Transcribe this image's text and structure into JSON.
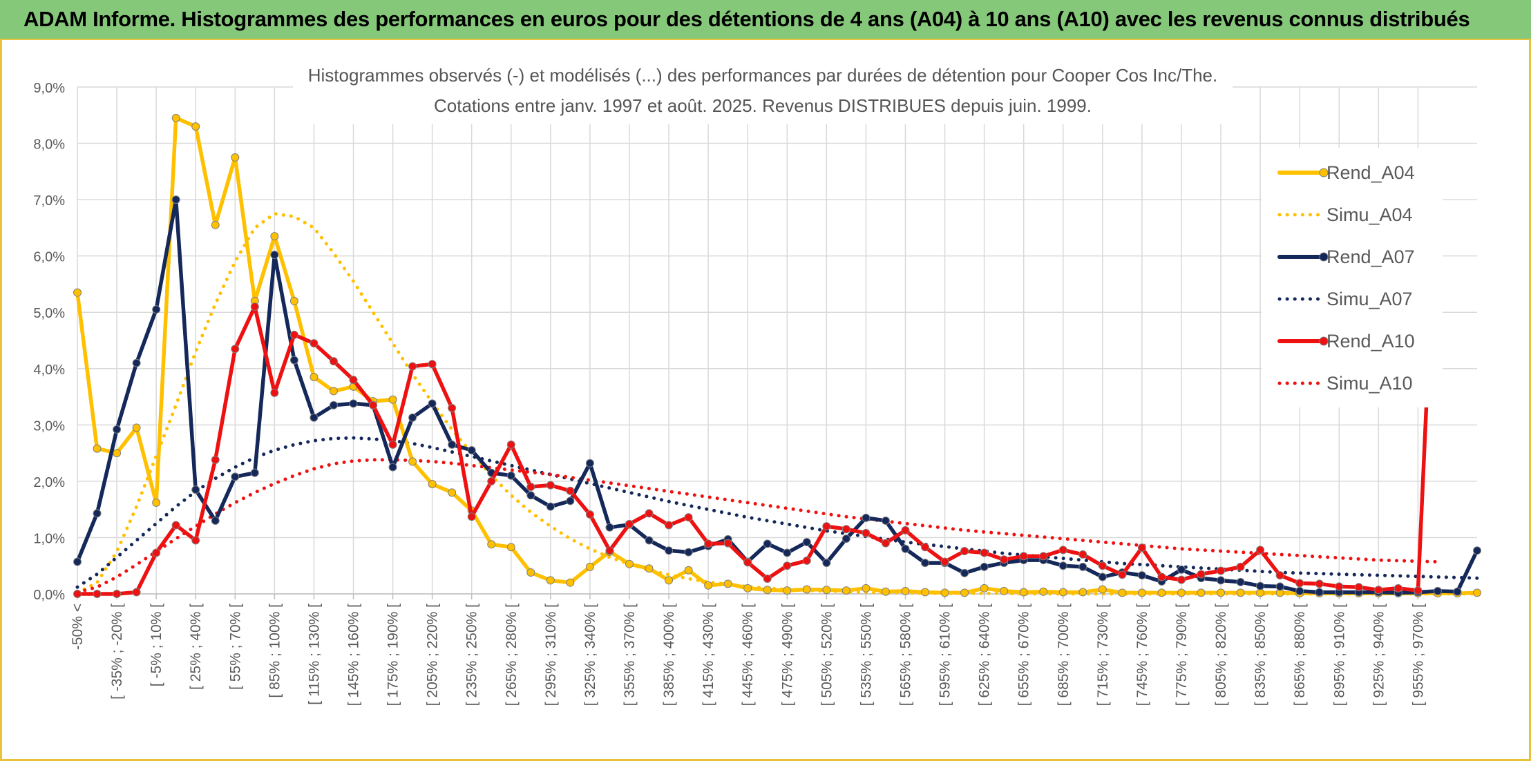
{
  "banner": {
    "title": "ADAM Informe. Histogrammes des performances en euros pour des détentions de 4 ans (A04) à 10 ans (A10) avec les revenus connus distribués"
  },
  "chart_data": {
    "type": "line",
    "title": "Histogrammes observés (-) et modélisés (...) des performances par durées de détention pour Cooper Cos Inc/The.",
    "subtitle": "Cotations entre janv. 1997 et août. 2025. Revenus DISTRIBUES depuis juin. 1999.",
    "ylim": [
      0,
      9
    ],
    "y_ticks": [
      "0,0%",
      "1,0%",
      "2,0%",
      "3,0%",
      "4,0%",
      "5,0%",
      "6,0%",
      "7,0%",
      "8,0%",
      "9,0%"
    ],
    "grid": true,
    "legend_position": "right",
    "x_tick_labels": [
      "-50% <",
      "[ -35% ; -20% [",
      "[ -5% ; 10% [",
      "[ 25% ; 40% [",
      "[ 55% ; 70% [",
      "[ 85% ; 100% [",
      "[ 115% ; 130% [",
      "[ 145% ; 160% [",
      "[ 175% ; 190% [",
      "[ 205% ; 220% [",
      "[ 235% ; 250% [",
      "[ 265% ; 280% [",
      "[ 295% ; 310% [",
      "[ 325% ; 340% [",
      "[ 355% ; 370% [",
      "[ 385% ; 400% [",
      "[ 415% ; 430% [",
      "[ 445% ; 460% [",
      "[ 475% ; 490% [",
      "[ 505% ; 520% [",
      "[ 535% ; 550% [",
      "[ 565% ; 580% [",
      "[ 595% ; 610% [",
      "[ 625% ; 640% [",
      "[ 655% ; 670% [",
      "[ 685% ; 700% [",
      "[ 715% ; 730% [",
      "[ 745% ; 760% [",
      "[ 775% ; 790% [",
      "[ 805% ; 820% [",
      "[ 835% ; 850% [",
      "[ 865% ; 880% [",
      "[ 895% ; 910% [",
      "[ 925% ; 940% [",
      "[ 955% ; 970% ["
    ],
    "series": [
      {
        "name": "Rend_A04",
        "color": "#FFC000",
        "style": "solid",
        "markers": true,
        "values": [
          5.35,
          2.58,
          2.5,
          2.95,
          1.62,
          8.45,
          8.3,
          6.55,
          7.75,
          5.2,
          6.35,
          5.2,
          3.85,
          3.6,
          3.68,
          3.42,
          3.45,
          2.35,
          1.95,
          1.8,
          1.48,
          0.88,
          0.83,
          0.38,
          0.24,
          0.2,
          0.48,
          0.75,
          0.53,
          0.45,
          0.24,
          0.42,
          0.15,
          0.18,
          0.1,
          0.07,
          0.06,
          0.08,
          0.07,
          0.06,
          0.1,
          0.04,
          0.05,
          0.03,
          0.02,
          0.02,
          0.1,
          0.05,
          0.03,
          0.04,
          0.03,
          0.03,
          0.08,
          0.02,
          0.02,
          0.02,
          0.02,
          0.02,
          0.02,
          0.02,
          0.02,
          0.02,
          0.01,
          0.01,
          0.01,
          0.01,
          0.01,
          0.01,
          0.01,
          0.01,
          0.01,
          0.02
        ]
      },
      {
        "name": "Simu_A04",
        "color": "#FFC000",
        "style": "dotted",
        "markers": false,
        "values": [
          0.02,
          0.2,
          0.75,
          1.55,
          2.45,
          3.35,
          4.3,
          5.15,
          5.9,
          6.5,
          6.75,
          6.7,
          6.5,
          6.05,
          5.55,
          5.0,
          4.45,
          3.9,
          3.4,
          2.92,
          2.5,
          2.1,
          1.75,
          1.45,
          1.2,
          0.98,
          0.8,
          0.65,
          0.53,
          0.42,
          0.34,
          0.27,
          0.21,
          0.17,
          0.13,
          0.1,
          0.08,
          0.06,
          0.05,
          0.04,
          0.03,
          0.02,
          0.02,
          0.01,
          0.01,
          0.01,
          0.01,
          0.01,
          0.0,
          0.0,
          0.0,
          0.0,
          0.0,
          0.0,
          0.0,
          0.0,
          0.0,
          0.0,
          0.0,
          0.0,
          0.0,
          0.0,
          0.0,
          0.0,
          0.0,
          0.0,
          0.0,
          0.0,
          0.0,
          0.0,
          0.0,
          0.0
        ]
      },
      {
        "name": "Rend_A07",
        "color": "#14285A",
        "style": "solid",
        "markers": true,
        "values": [
          0.57,
          1.43,
          2.92,
          4.1,
          5.05,
          7.0,
          1.85,
          1.3,
          2.08,
          2.15,
          6.02,
          4.15,
          3.13,
          3.35,
          3.38,
          3.35,
          2.25,
          3.13,
          3.38,
          2.65,
          2.55,
          2.15,
          2.1,
          1.75,
          1.55,
          1.65,
          2.32,
          1.18,
          1.23,
          0.95,
          0.77,
          0.74,
          0.85,
          0.97,
          0.57,
          0.89,
          0.73,
          0.92,
          0.55,
          0.98,
          1.35,
          1.3,
          0.8,
          0.55,
          0.55,
          0.37,
          0.48,
          0.55,
          0.6,
          0.6,
          0.5,
          0.48,
          0.3,
          0.38,
          0.33,
          0.22,
          0.43,
          0.28,
          0.24,
          0.21,
          0.14,
          0.13,
          0.05,
          0.03,
          0.03,
          0.03,
          0.03,
          0.02,
          0.03,
          0.05,
          0.04,
          0.77
        ]
      },
      {
        "name": "Simu_A07",
        "color": "#14285A",
        "style": "dotted",
        "markers": false,
        "values": [
          0.12,
          0.35,
          0.65,
          0.95,
          1.25,
          1.55,
          1.82,
          2.05,
          2.25,
          2.42,
          2.55,
          2.65,
          2.72,
          2.76,
          2.77,
          2.75,
          2.72,
          2.67,
          2.6,
          2.52,
          2.44,
          2.36,
          2.28,
          2.2,
          2.12,
          2.04,
          1.96,
          1.88,
          1.8,
          1.72,
          1.64,
          1.57,
          1.5,
          1.43,
          1.36,
          1.3,
          1.24,
          1.18,
          1.12,
          1.07,
          1.02,
          0.97,
          0.92,
          0.88,
          0.84,
          0.8,
          0.76,
          0.72,
          0.69,
          0.66,
          0.63,
          0.6,
          0.57,
          0.54,
          0.52,
          0.5,
          0.48,
          0.46,
          0.44,
          0.42,
          0.4,
          0.38,
          0.37,
          0.36,
          0.35,
          0.34,
          0.33,
          0.32,
          0.31,
          0.3,
          0.29,
          0.28
        ]
      },
      {
        "name": "Rend_A10",
        "color": "#EE1111",
        "style": "solid",
        "markers": true,
        "values": [
          0.0,
          0.0,
          0.0,
          0.03,
          0.73,
          1.22,
          0.95,
          2.38,
          4.35,
          5.1,
          3.57,
          4.6,
          4.45,
          4.13,
          3.8,
          3.35,
          2.65,
          4.04,
          4.08,
          3.3,
          1.37,
          2.0,
          2.65,
          1.9,
          1.93,
          1.83,
          1.41,
          0.77,
          1.24,
          1.43,
          1.22,
          1.36,
          0.89,
          0.9,
          0.56,
          0.27,
          0.5,
          0.59,
          1.2,
          1.15,
          1.08,
          0.9,
          1.13,
          0.83,
          0.57,
          0.76,
          0.73,
          0.61,
          0.67,
          0.67,
          0.78,
          0.7,
          0.5,
          0.34,
          0.82,
          0.3,
          0.25,
          0.35,
          0.41,
          0.48,
          0.78,
          0.33,
          0.19,
          0.18,
          0.13,
          0.12,
          0.07,
          0.1,
          0.06,
          7.77
        ]
      },
      {
        "name": "Simu_A10",
        "color": "#EE1111",
        "style": "dotted",
        "markers": false,
        "values": [
          0.03,
          0.12,
          0.3,
          0.52,
          0.75,
          0.98,
          1.2,
          1.42,
          1.62,
          1.8,
          1.96,
          2.1,
          2.22,
          2.31,
          2.36,
          2.38,
          2.38,
          2.37,
          2.35,
          2.32,
          2.28,
          2.24,
          2.2,
          2.16,
          2.12,
          2.07,
          2.02,
          1.97,
          1.92,
          1.87,
          1.82,
          1.77,
          1.72,
          1.67,
          1.62,
          1.57,
          1.52,
          1.47,
          1.42,
          1.37,
          1.33,
          1.29,
          1.25,
          1.21,
          1.17,
          1.13,
          1.1,
          1.07,
          1.04,
          1.01,
          0.98,
          0.95,
          0.92,
          0.89,
          0.86,
          0.83,
          0.8,
          0.78,
          0.76,
          0.74,
          0.72,
          0.7,
          0.68,
          0.66,
          0.64,
          0.62,
          0.6,
          0.59,
          0.58,
          0.57
        ]
      }
    ]
  }
}
